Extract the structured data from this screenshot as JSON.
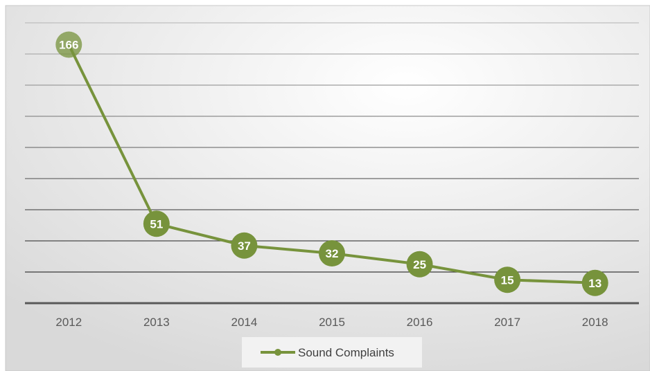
{
  "chart_data": {
    "type": "line",
    "categories": [
      "2012",
      "2013",
      "2014",
      "2015",
      "2016",
      "2017",
      "2018"
    ],
    "series": [
      {
        "name": "Sound Complaints",
        "values": [
          166,
          51,
          37,
          32,
          25,
          15,
          13
        ],
        "data_labels": [
          "166",
          "51",
          "37",
          "32",
          "25",
          "15",
          "13"
        ],
        "color": "#77933c"
      }
    ],
    "ylim": [
      0,
      180
    ],
    "gridlines": 9,
    "grid": true,
    "legend": "bottom",
    "colors": {
      "background_center": "#ffffff",
      "background_edge": "#d9d9d9",
      "axis": "#595959",
      "line": "#77933c",
      "marker": "#77933c"
    }
  }
}
